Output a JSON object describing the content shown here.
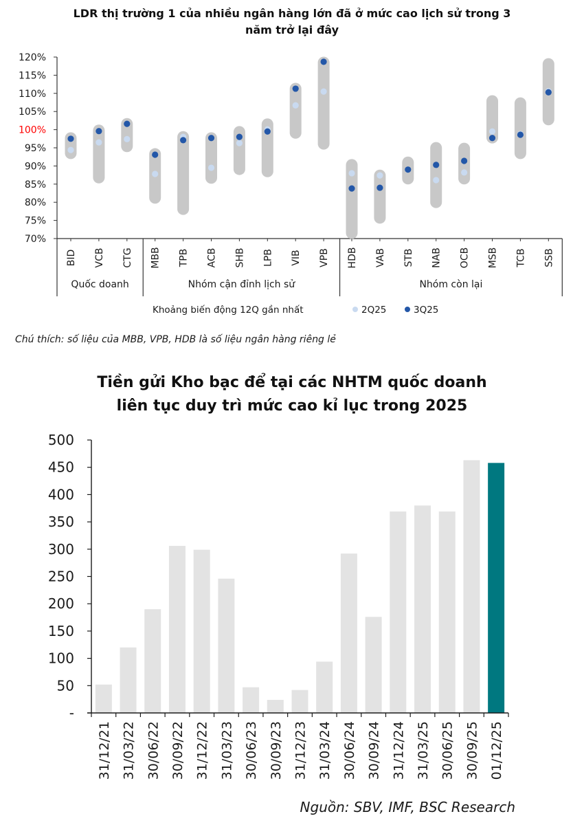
{
  "chart_data": [
    {
      "type": "range-dot",
      "title": "LDR thị trường 1 của nhiều ngân hàng lớn đã ở mức cao lịch sử trong 3 năm trở lại đây",
      "title_lines": [
        "LDR thị trường 1 của nhiều ngân hàng lớn đã ở mức cao lịch sử trong 3",
        "năm trở lại đây"
      ],
      "ylim": [
        70,
        120
      ],
      "yticks": [
        "70%",
        "75%",
        "80%",
        "85%",
        "90%",
        "95%",
        "100%",
        "105%",
        "110%",
        "115%",
        "120%"
      ],
      "highlight_tick": "100%",
      "highlight_color": "#ff0000",
      "categories": [
        "BID",
        "VCB",
        "CTG",
        "MBB",
        "TPB",
        "ACB",
        "SHB",
        "LPB",
        "VIB",
        "VPB",
        "HDB",
        "VAB",
        "STB",
        "NAB",
        "OCB",
        "MSB",
        "TCB",
        "SSB"
      ],
      "groups": [
        {
          "label": "Quốc doanh",
          "count": 3
        },
        {
          "label": "Nhóm cận đỉnh lịch sử",
          "count": 7
        },
        {
          "label": "Nhóm còn lại",
          "count": 8
        }
      ],
      "range_low": [
        92.0,
        85.3,
        93.9,
        79.7,
        76.6,
        85.2,
        87.6,
        87.0,
        97.6,
        94.6,
        70.0,
        74.2,
        85.0,
        78.5,
        85.0,
        96.3,
        92.0,
        101.3
      ],
      "range_high": [
        99.2,
        101.3,
        103.1,
        94.8,
        99.5,
        99.2,
        100.9,
        103.0,
        112.8,
        120.0,
        91.8,
        88.9,
        92.5,
        96.5,
        96.3,
        109.4,
        108.8,
        119.6
      ],
      "series": [
        {
          "name": "2Q25",
          "values": [
            94.4,
            96.5,
            97.4,
            87.8,
            98.0,
            89.5,
            96.3,
            100.1,
            106.7,
            110.5,
            88.0,
            87.4,
            89.0,
            86.1,
            88.2,
            99.5,
            98.8,
            110.6
          ],
          "color": "#c9daf0"
        },
        {
          "name": "3Q25",
          "values": [
            97.5,
            99.6,
            101.6,
            93.1,
            97.1,
            97.7,
            98.0,
            99.5,
            111.3,
            118.7,
            83.8,
            84.0,
            89.0,
            90.3,
            91.4,
            97.7,
            98.6,
            110.3
          ],
          "color": "#2357a8"
        }
      ],
      "range_color": "#c8c8c8",
      "legend": {
        "range_label": "Khoảng biến động 12Q gần nhất",
        "items": [
          "2Q25",
          "3Q25"
        ],
        "position": "bottom"
      }
    },
    {
      "type": "bar",
      "title": "Tiền gửi Kho bạc để tại các NHTM quốc doanh liên tục duy trì mức cao kỉ lục trong 2025",
      "title_lines": [
        "Tiền gửi Kho bạc để tại các NHTM quốc doanh",
        "liên tục duy trì mức cao kỉ lục trong 2025"
      ],
      "categories": [
        "31/12/21",
        "31/03/22",
        "30/06/22",
        "30/09/22",
        "31/12/22",
        "31/03/23",
        "30/06/23",
        "30/09/23",
        "31/12/23",
        "31/03/24",
        "30/06/24",
        "30/09/24",
        "31/12/24",
        "31/03/25",
        "30/06/25",
        "30/09/25",
        "01/12/25"
      ],
      "values": [
        52,
        120,
        190,
        306,
        299,
        246,
        47,
        24,
        42,
        94,
        292,
        176,
        369,
        380,
        369,
        463,
        458
      ],
      "ylim": [
        0,
        500
      ],
      "yticks": [
        "-",
        "50",
        "100",
        "150",
        "200",
        "250",
        "300",
        "350",
        "400",
        "450",
        "500"
      ],
      "bar_color": "#e3e3e3",
      "highlight_color": "#007880",
      "highlight_index": 16,
      "xlabel": "",
      "ylabel": ""
    }
  ],
  "note": "Chú thích: số liệu của MBB, VPB, HDB là số liệu ngân hàng riêng lẻ",
  "source": "Nguồn: SBV, IMF, BSC Research"
}
